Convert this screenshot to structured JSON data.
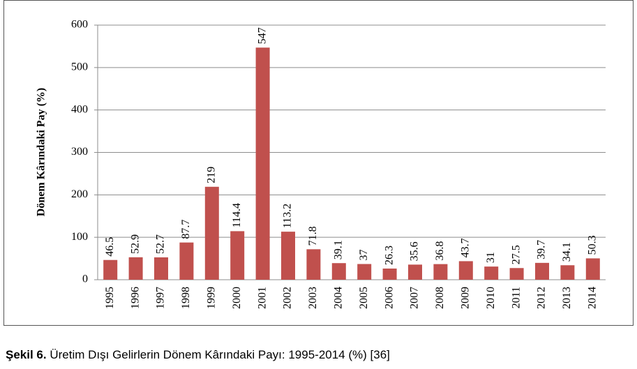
{
  "chart_data": {
    "type": "bar",
    "y_axis_label": "Dönem Kârındaki Pay (%)",
    "categories": [
      "1995",
      "1996",
      "1997",
      "1998",
      "1999",
      "2000",
      "2001",
      "2002",
      "2003",
      "2004",
      "2005",
      "2006",
      "2007",
      "2008",
      "2009",
      "2010",
      "2011",
      "2012",
      "2013",
      "2014"
    ],
    "values": [
      46.5,
      52.9,
      52.7,
      87.7,
      219,
      114.4,
      547,
      113.2,
      71.8,
      39.1,
      37,
      26.3,
      35.6,
      36.8,
      43.7,
      31,
      27.5,
      39.7,
      34.1,
      50.3
    ],
    "color": "#c0504d",
    "ylim": [
      0,
      600
    ],
    "yticks": [
      0,
      100,
      200,
      300,
      400,
      500,
      600
    ],
    "grid": true
  },
  "caption": {
    "label": "Şekil 6.",
    "text": "Üretim Dışı Gelirlerin Dönem Kârındaki Payı: 1995-2014 (%) [36]"
  }
}
